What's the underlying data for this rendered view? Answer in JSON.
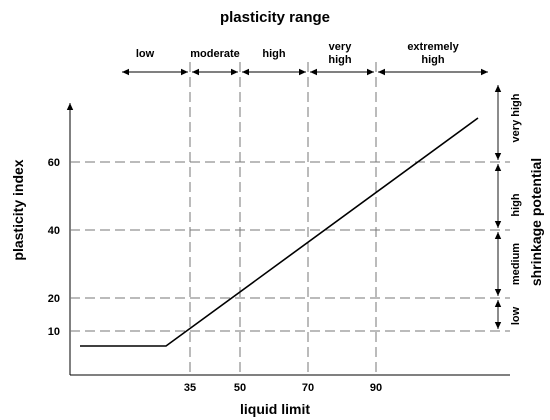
{
  "title": "plasticity range",
  "x_axis": {
    "label": "liquid limit",
    "ticks": [
      "35",
      "50",
      "70",
      "90"
    ]
  },
  "y_axis": {
    "label": "plasticity index",
    "ticks": [
      "10",
      "20",
      "40",
      "60"
    ]
  },
  "right_axis": {
    "label": "shrinkage potential",
    "ranges": [
      "low",
      "medium",
      "high",
      "very high"
    ]
  },
  "top_ranges": [
    {
      "line1": "low",
      "line2": ""
    },
    {
      "line1": "moderate",
      "line2": ""
    },
    {
      "line1": "high",
      "line2": ""
    },
    {
      "line1": "very",
      "line2": "high"
    },
    {
      "line1": "extremely",
      "line2": "high"
    }
  ],
  "colors": {
    "grid_dash": "#777777",
    "line": "#000000",
    "background": "#ffffff"
  }
}
